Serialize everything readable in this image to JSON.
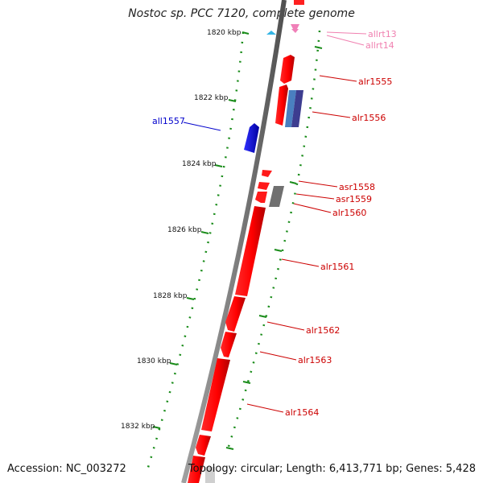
{
  "title": "Nostoc sp. PCC 7120, complete genome",
  "accession": "Accession: NC_003272",
  "summary": "Topology: circular; Length: 6,413,771 bp; Genes: 5,428",
  "scale_labels": [
    "1820 kbp",
    "1822 kbp",
    "1824 kbp",
    "1826 kbp",
    "1828 kbp",
    "1830 kbp",
    "1832 kbp"
  ],
  "gene_labels": [
    {
      "name": "allrt13",
      "color": "#f080b0"
    },
    {
      "name": "allrt14",
      "color": "#f080b0"
    },
    {
      "name": "alr1555",
      "color": "#cc0000"
    },
    {
      "name": "alr1556",
      "color": "#cc0000"
    },
    {
      "name": "all1557",
      "color": "#0000cc"
    },
    {
      "name": "asr1558",
      "color": "#cc0000"
    },
    {
      "name": "asr1559",
      "color": "#cc0000"
    },
    {
      "name": "alr1560",
      "color": "#cc0000"
    },
    {
      "name": "alr1561",
      "color": "#cc0000"
    },
    {
      "name": "alr1562",
      "color": "#cc0000"
    },
    {
      "name": "alr1563",
      "color": "#cc0000"
    },
    {
      "name": "alr1564",
      "color": "#cc0000"
    }
  ]
}
